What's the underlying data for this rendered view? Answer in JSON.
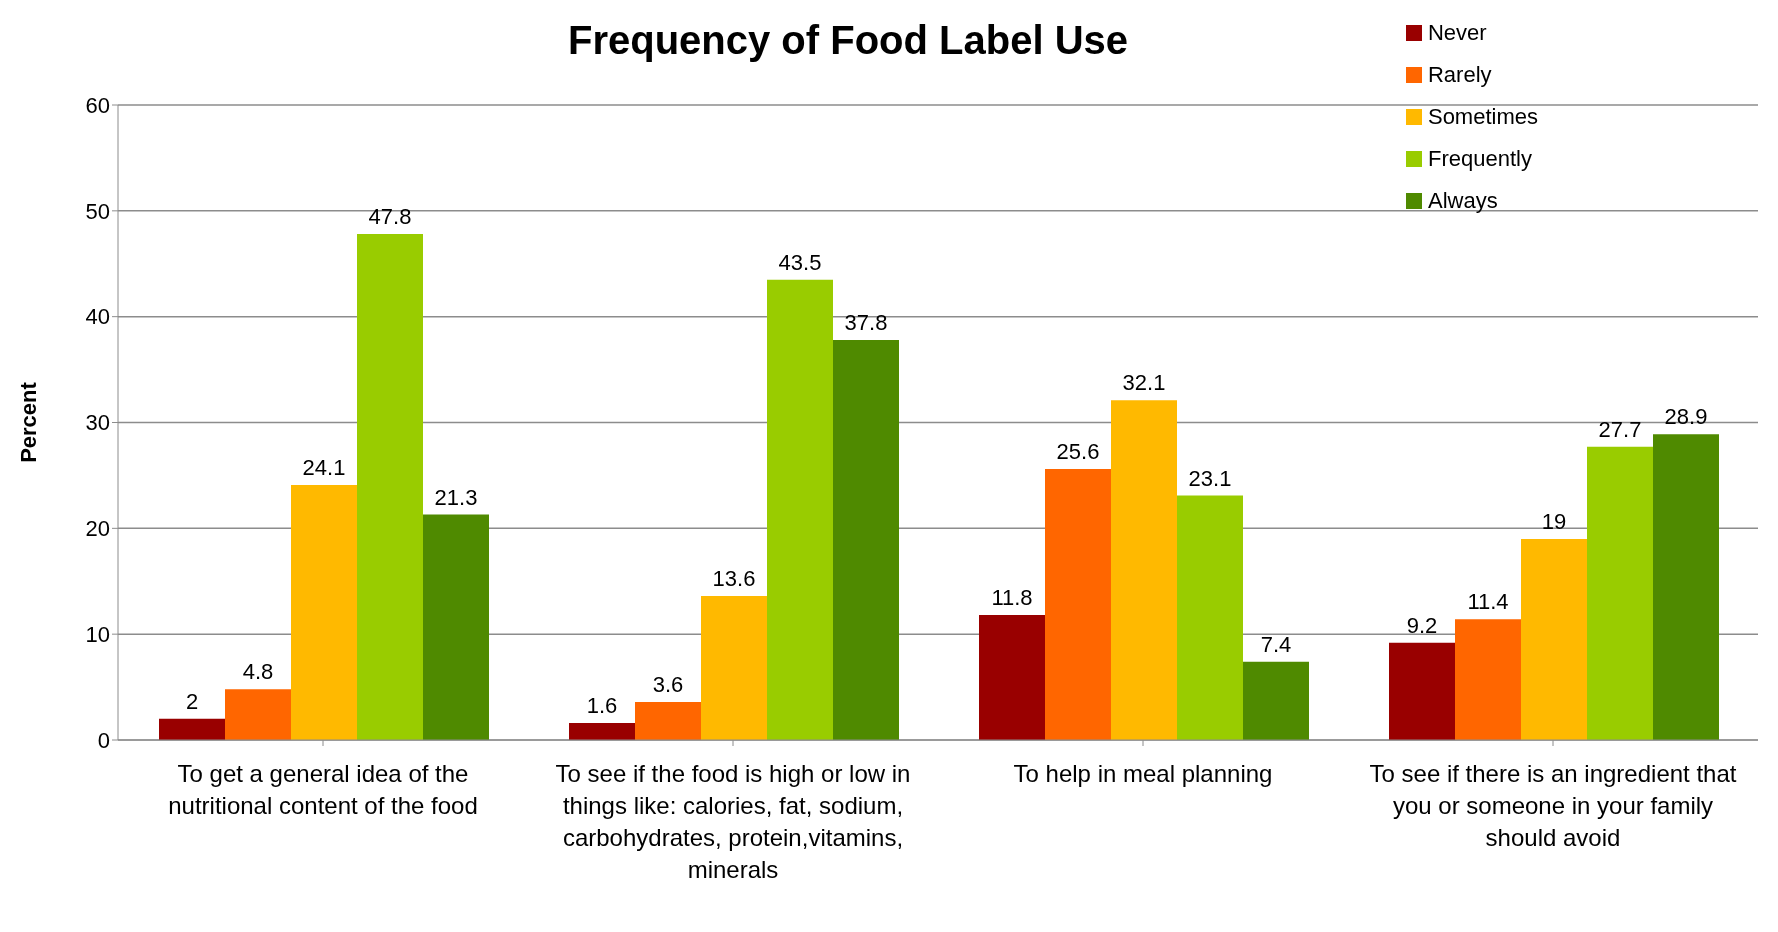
{
  "chart_data": {
    "type": "bar",
    "title": "Frequency of Food Label Use",
    "ylabel": "Percent",
    "categories": [
      "To get a general idea of the nutritional content of the food",
      "To see if the food is high or low in things like: calories, fat, sodium, carbohydrates, protein,vitamins, minerals",
      "To help in meal planning",
      "To see if there is an ingredient that you or someone in your family should avoid"
    ],
    "series": [
      {
        "name": "Never",
        "color": "#990000",
        "values": [
          2,
          1.6,
          11.8,
          9.2
        ]
      },
      {
        "name": "Rarely",
        "color": "#ff6600",
        "values": [
          4.8,
          3.6,
          25.6,
          11.4
        ]
      },
      {
        "name": "Sometimes",
        "color": "#ffb900",
        "values": [
          24.1,
          13.6,
          32.1,
          19
        ]
      },
      {
        "name": "Frequently",
        "color": "#99cc00",
        "values": [
          47.8,
          43.5,
          23.1,
          27.7
        ]
      },
      {
        "name": "Always",
        "color": "#4f8a00",
        "values": [
          21.3,
          37.8,
          7.4,
          28.9
        ]
      }
    ],
    "ylim": [
      0,
      60
    ],
    "yticks": [
      0,
      10,
      20,
      30,
      40,
      50,
      60
    ],
    "grid": "y",
    "legend": "top right",
    "data_labels": true
  }
}
